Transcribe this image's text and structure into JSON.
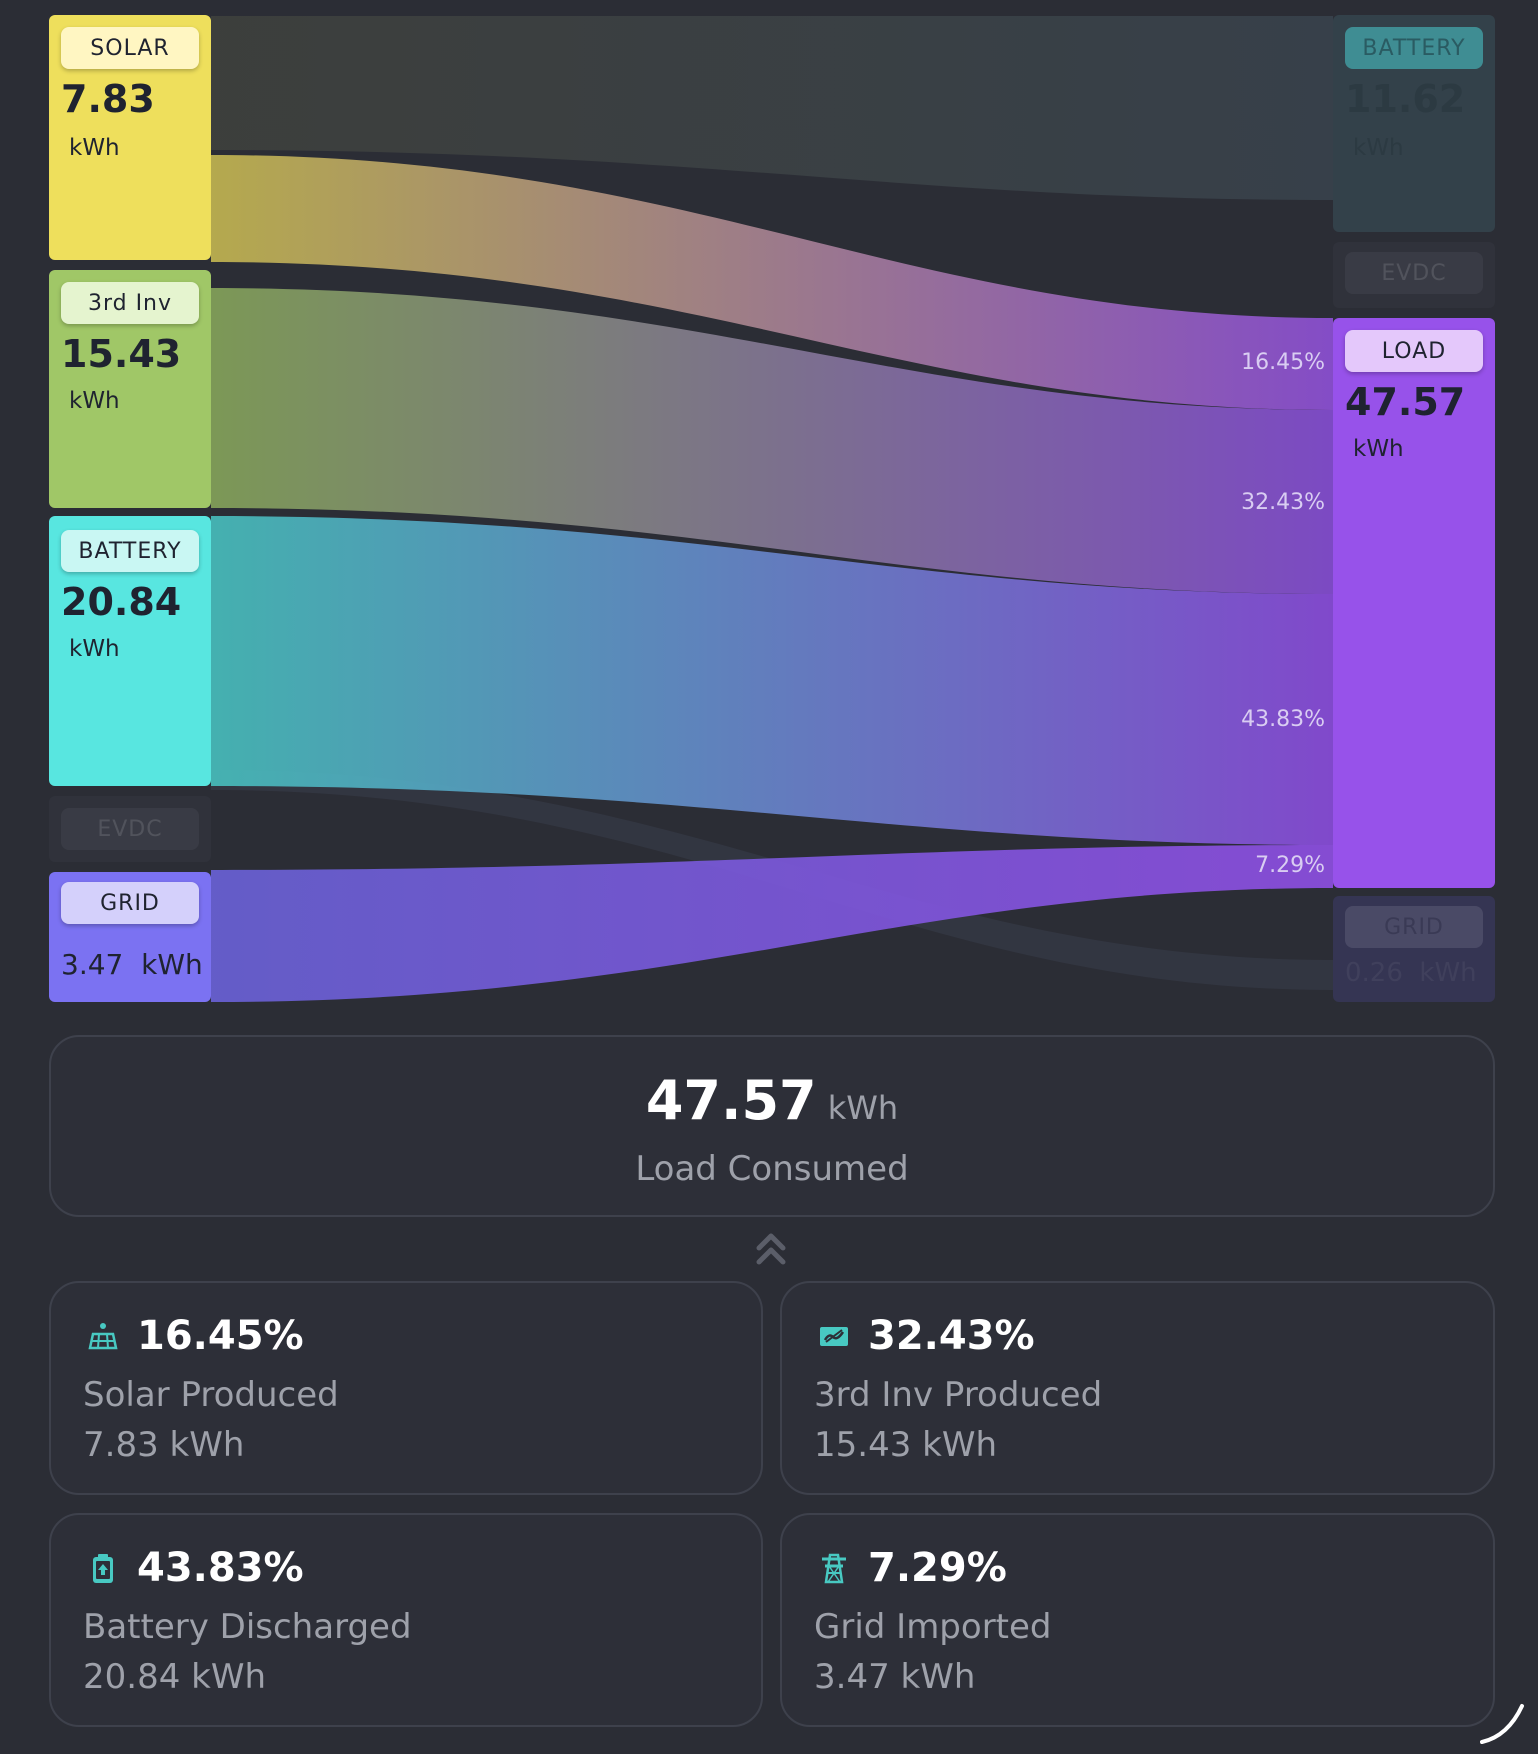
{
  "sources": {
    "solar": {
      "label": "SOLAR",
      "value": "7.83",
      "unit": "kWh",
      "color": "#eedf5c"
    },
    "inv3": {
      "label": "3rd Inv",
      "value": "15.43",
      "unit": "kWh",
      "color": "#a0c767"
    },
    "battery": {
      "label": "BATTERY",
      "value": "20.84",
      "unit": "kWh",
      "color": "#58e6e0"
    },
    "evdc": {
      "label": "EVDC"
    },
    "grid": {
      "label": "GRID",
      "value_text": "3.47  kWh",
      "color": "#7b72f2"
    }
  },
  "targets": {
    "battery": {
      "label": "BATTERY",
      "value": "11.62",
      "unit": "kWh",
      "color": "#3f8d93"
    },
    "evdc": {
      "label": "EVDC"
    },
    "load": {
      "label": "LOAD",
      "value": "47.57",
      "unit": "kWh",
      "color": "#9752ea"
    },
    "grid": {
      "label": "GRID",
      "value_text": "0.26  kWh",
      "color": "#6e66dc"
    }
  },
  "flow_percentages": [
    "16.45%",
    "32.43%",
    "43.83%",
    "7.29%"
  ],
  "summary": {
    "value": "47.57",
    "unit": "kWh",
    "label": "Load Consumed"
  },
  "cards": [
    {
      "icon": "solar-panel-icon",
      "percent": "16.45%",
      "label": "Solar Produced",
      "value": "7.83 kWh"
    },
    {
      "icon": "inverter-icon",
      "percent": "32.43%",
      "label": "3rd Inv Produced",
      "value": "15.43 kWh"
    },
    {
      "icon": "battery-discharge-icon",
      "percent": "43.83%",
      "label": "Battery Discharged",
      "value": "20.84 kWh"
    },
    {
      "icon": "transmission-tower-icon",
      "percent": "7.29%",
      "label": "Grid Imported",
      "value": "3.47 kWh"
    }
  ]
}
